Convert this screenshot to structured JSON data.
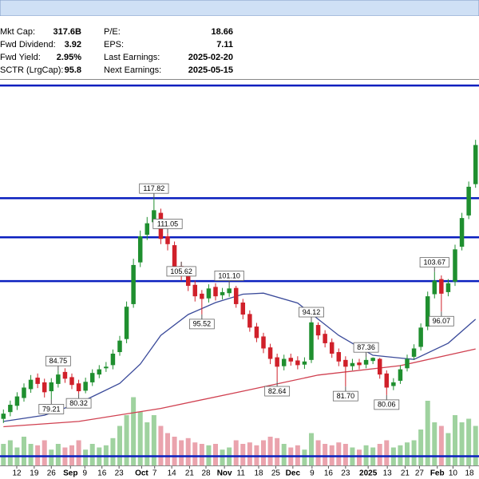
{
  "stats": {
    "left": [
      {
        "label": "Mkt Cap:",
        "value": "317.6B"
      },
      {
        "label": "Fwd Dividend:",
        "value": "3.92"
      },
      {
        "label": "Fwd Yield:",
        "value": "2.95%"
      },
      {
        "label": "SCTR (LrgCap):",
        "value": "95.8"
      }
    ],
    "right": [
      {
        "label": "P/E:",
        "value": "18.66"
      },
      {
        "label": "EPS:",
        "value": "7.11"
      },
      {
        "label": "Last Earnings:",
        "value": "2025-02-20"
      },
      {
        "label": "Next Earnings:",
        "value": "2025-05-15"
      }
    ]
  },
  "chart_data": {
    "type": "candlestick",
    "xlim": [
      -0.5,
      69.5
    ],
    "ylim": [
      65.5,
      140.5
    ],
    "vlim": [
      0,
      100
    ],
    "up_color": "#1f8f2f",
    "down_color": "#d0202a",
    "up_volume_color": "#9fd29f",
    "down_volume_color": "#eaa3ad",
    "open": [
      75.5,
      76.8,
      78.0,
      79.5,
      81.2,
      83.4,
      82.5,
      80.8,
      82.2,
      84.5,
      83.5,
      82.3,
      80.9,
      82.5,
      84.0,
      85.2,
      85.8,
      88.3,
      90.8,
      97.5,
      105.5,
      110.8,
      113.2,
      115.0,
      110.5,
      108.8,
      104.8,
      103.2,
      101.2,
      99.5,
      98.6,
      100.8,
      99.2,
      99.6,
      100.6,
      97.8,
      95.6,
      93.2,
      91.3,
      89.2,
      87.3,
      85.6,
      87.2,
      86.7,
      85.9,
      86.8,
      93.5,
      91.8,
      90.2,
      88.3,
      86.8,
      85.6,
      86.3,
      85.9,
      86.6,
      87.0,
      84.2,
      81.8,
      82.8,
      85.2,
      87.4,
      89.3,
      93.2,
      99.4,
      102.3,
      99.8,
      101.8,
      108.5,
      114.5,
      120.5
    ],
    "high": [
      77.3,
      79.0,
      80.6,
      82.3,
      83.9,
      84.2,
      83.2,
      83.3,
      84.75,
      85.2,
      84.2,
      83.0,
      83.4,
      85.0,
      85.8,
      86.4,
      88.8,
      91.4,
      98.0,
      106.2,
      111.6,
      114.2,
      117.82,
      115.8,
      111.05,
      109.5,
      105.62,
      104.0,
      102.0,
      100.2,
      101.3,
      101.5,
      100.6,
      101.1,
      101.0,
      98.5,
      96.3,
      93.9,
      92.0,
      89.9,
      88.0,
      87.8,
      88.0,
      87.5,
      87.3,
      94.12,
      94.0,
      92.5,
      90.9,
      89.0,
      87.5,
      87.0,
      87.0,
      87.36,
      87.3,
      87.2,
      84.8,
      83.3,
      85.8,
      87.8,
      89.8,
      93.8,
      99.9,
      103.67,
      103.0,
      102.3,
      108.9,
      115.0,
      121.0,
      129.0
    ],
    "low": [
      74.7,
      76.0,
      77.2,
      78.8,
      80.5,
      81.4,
      79.6,
      79.21,
      81.5,
      82.4,
      81.2,
      80.32,
      80.4,
      81.8,
      83.3,
      84.5,
      85.0,
      87.6,
      90.0,
      96.8,
      104.6,
      109.8,
      112.4,
      109.0,
      107.8,
      103.6,
      102.0,
      100.0,
      98.0,
      95.52,
      97.8,
      98.2,
      98.4,
      98.9,
      96.8,
      94.6,
      92.2,
      90.2,
      88.1,
      86.0,
      82.64,
      84.8,
      85.7,
      85.0,
      85.1,
      86.2,
      90.7,
      89.2,
      87.2,
      85.6,
      81.7,
      84.8,
      85.0,
      85.2,
      86.0,
      83.2,
      80.06,
      81.0,
      82.2,
      84.6,
      86.8,
      88.6,
      92.5,
      98.6,
      96.07,
      99.0,
      101.0,
      107.8,
      113.8,
      119.8
    ],
    "close": [
      76.5,
      78.2,
      79.8,
      81.5,
      83.0,
      82.2,
      80.6,
      82.5,
      84.0,
      83.2,
      82.0,
      80.8,
      82.6,
      84.3,
      85.0,
      85.5,
      88.0,
      90.5,
      97.0,
      105.0,
      110.5,
      113.0,
      115.5,
      110.0,
      109.0,
      104.5,
      103.0,
      101.0,
      99.0,
      98.5,
      100.5,
      99.0,
      99.8,
      100.5,
      97.5,
      95.5,
      93.0,
      91.0,
      89.0,
      87.0,
      85.5,
      87.0,
      86.5,
      85.8,
      86.5,
      94.0,
      91.5,
      90.0,
      88.0,
      86.5,
      85.5,
      86.2,
      85.8,
      86.8,
      87.2,
      84.0,
      81.5,
      82.5,
      85.0,
      87.0,
      89.0,
      93.0,
      99.0,
      102.0,
      99.5,
      101.5,
      108.0,
      114.0,
      120.0,
      128.0
    ],
    "volume": [
      30,
      35,
      25,
      40,
      30,
      28,
      35,
      22,
      30,
      25,
      28,
      35,
      22,
      30,
      25,
      28,
      38,
      55,
      70,
      95,
      75,
      60,
      70,
      55,
      45,
      40,
      35,
      38,
      32,
      30,
      28,
      30,
      22,
      25,
      35,
      30,
      32,
      28,
      35,
      40,
      38,
      30,
      25,
      28,
      22,
      45,
      35,
      30,
      28,
      32,
      30,
      25,
      22,
      28,
      25,
      30,
      35,
      25,
      28,
      32,
      35,
      50,
      90,
      60,
      55,
      45,
      70,
      60,
      65,
      55
    ],
    "overlays": [
      {
        "color": "#3a4a9a",
        "x": [
          0,
          6,
          11,
          17,
          20,
          23,
          27,
          31,
          35,
          38,
          43,
          49,
          54,
          60,
          65,
          69
        ],
        "values": [
          75.0,
          76.2,
          78.5,
          82.3,
          86.0,
          91.5,
          95.5,
          97.8,
          99.4,
          99.6,
          97.7,
          91.5,
          87.7,
          86.9,
          90.0,
          94.6
        ]
      },
      {
        "color": "#d04050",
        "x": [
          0,
          11,
          23,
          35,
          46,
          58,
          69
        ],
        "values": [
          74.0,
          75.0,
          77.5,
          80.8,
          83.9,
          85.7,
          88.9
        ]
      }
    ],
    "levels": [
      139.4,
      117.8,
      110.3,
      101.9
    ],
    "level_color": "#0a1fbf",
    "annotations": [
      {
        "x": 8,
        "value": 84.75,
        "label": "84.75",
        "pos": "above"
      },
      {
        "x": 7,
        "value": 79.21,
        "label": "79.21",
        "pos": "below"
      },
      {
        "x": 11,
        "value": 80.32,
        "label": "80.32",
        "pos": "below"
      },
      {
        "x": 22,
        "value": 117.82,
        "label": "117.82",
        "pos": "above"
      },
      {
        "x": 24,
        "value": 111.05,
        "label": "111.05",
        "pos": "above"
      },
      {
        "x": 26,
        "value": 105.62,
        "label": "105.62",
        "pos": "below"
      },
      {
        "x": 29,
        "value": 95.52,
        "label": "95.52",
        "pos": "below"
      },
      {
        "x": 33,
        "value": 101.1,
        "label": "101.10",
        "pos": "above"
      },
      {
        "x": 40,
        "value": 82.64,
        "label": "82.64",
        "pos": "below"
      },
      {
        "x": 45,
        "value": 94.12,
        "label": "94.12",
        "pos": "above"
      },
      {
        "x": 50,
        "value": 81.7,
        "label": "81.70",
        "pos": "below"
      },
      {
        "x": 53,
        "value": 87.36,
        "label": "87.36",
        "pos": "above"
      },
      {
        "x": 56,
        "value": 80.06,
        "label": "80.06",
        "pos": "below"
      },
      {
        "x": 63,
        "value": 103.67,
        "label": "103.67",
        "pos": "above"
      },
      {
        "x": 64,
        "value": 96.07,
        "label": "96.07",
        "pos": "below"
      }
    ],
    "xticks": [
      {
        "value": 1.95,
        "label": "12"
      },
      {
        "value": 4.5,
        "label": "19"
      },
      {
        "value": 7,
        "label": "26"
      },
      {
        "value": 9.8,
        "label": "Sep"
      },
      {
        "value": 11.9,
        "label": "9"
      },
      {
        "value": 14.4,
        "label": "16"
      },
      {
        "value": 16.9,
        "label": "23"
      },
      {
        "value": 20.2,
        "label": "Oct"
      },
      {
        "value": 22.1,
        "label": "7"
      },
      {
        "value": 24.6,
        "label": "14"
      },
      {
        "value": 27.2,
        "label": "21"
      },
      {
        "value": 29.6,
        "label": "28"
      },
      {
        "value": 32.3,
        "label": "Nov"
      },
      {
        "value": 34.7,
        "label": "11"
      },
      {
        "value": 37.3,
        "label": "18"
      },
      {
        "value": 39.8,
        "label": "25"
      },
      {
        "value": 42.3,
        "label": "Dec"
      },
      {
        "value": 45.1,
        "label": "9"
      },
      {
        "value": 47.5,
        "label": "16"
      },
      {
        "value": 50.0,
        "label": "23"
      },
      {
        "value": 53.3,
        "label": "2025"
      },
      {
        "value": 56.1,
        "label": "13"
      },
      {
        "value": 58.7,
        "label": "21"
      },
      {
        "value": 60.8,
        "label": "27"
      },
      {
        "value": 63.4,
        "label": "Feb"
      },
      {
        "value": 65.7,
        "label": "10"
      },
      {
        "value": 68.1,
        "label": "18"
      }
    ]
  }
}
